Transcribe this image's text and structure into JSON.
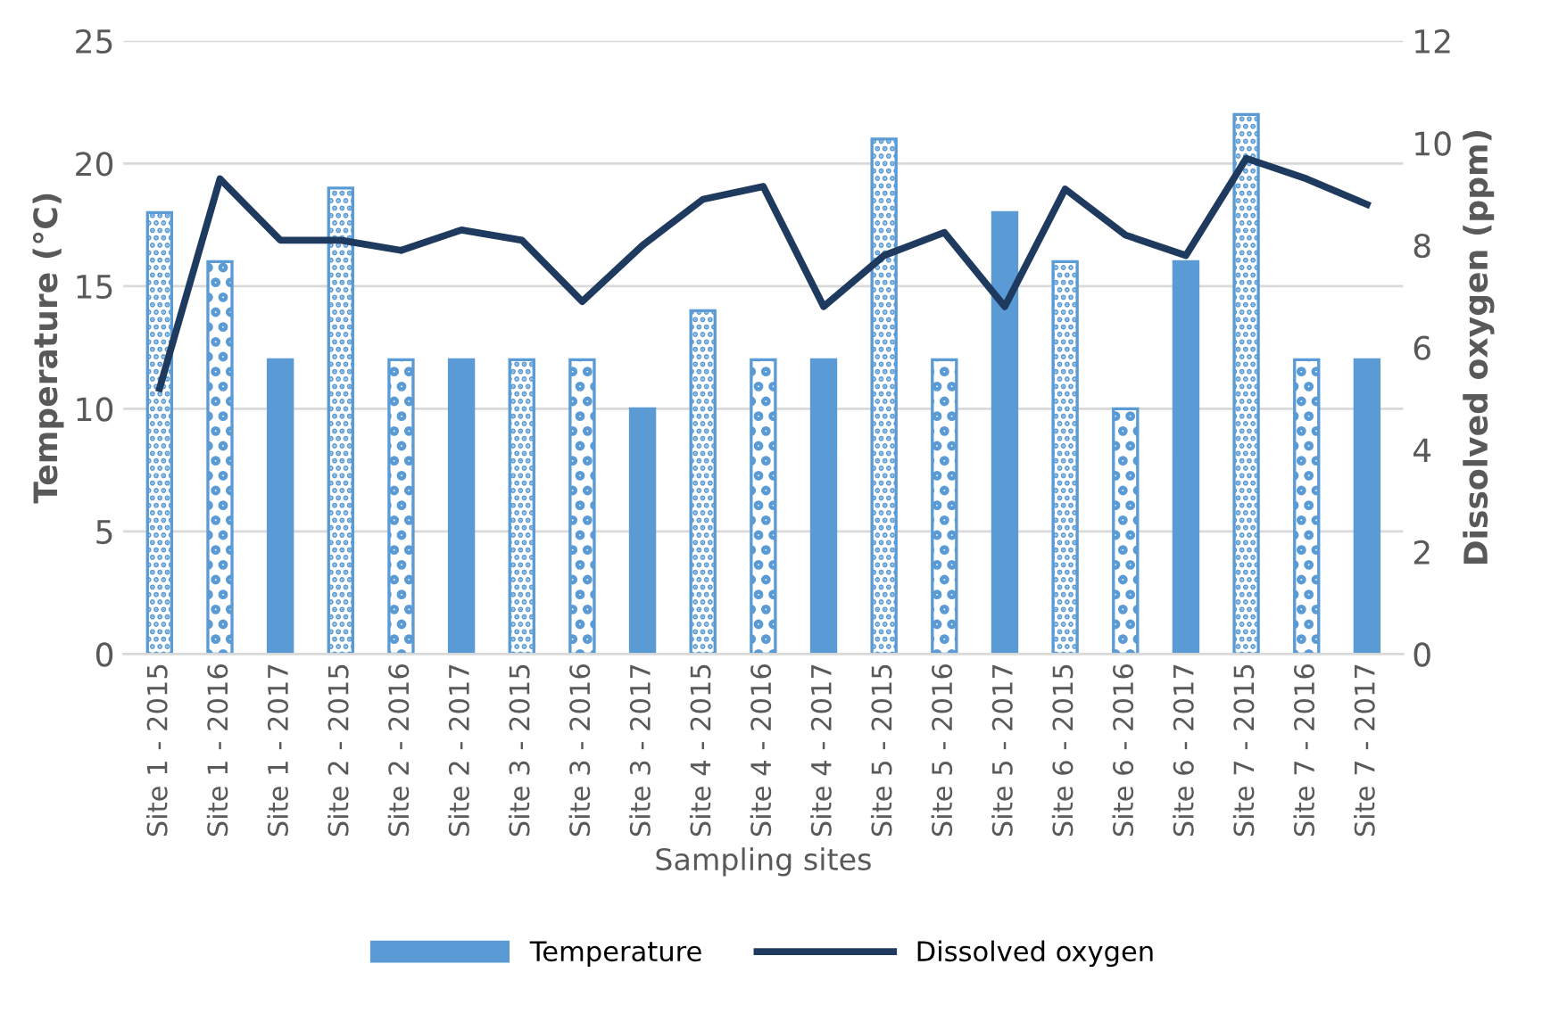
{
  "chart_data": {
    "type": "bar",
    "xlabel": "Sampling sites",
    "ylabel": "Temperature (°C)",
    "y2label": "Dissolved oxygen (ppm)",
    "categories": [
      "Site 1 - 2015",
      "Site 1 - 2016",
      "Site 1 - 2017",
      "Site 2 - 2015",
      "Site 2 - 2016",
      "Site 2 - 2017",
      "Site 3 - 2015",
      "Site 3 - 2016",
      "Site 3 - 2017",
      "Site 4 - 2015",
      "Site 4 - 2016",
      "Site 4 - 2017",
      "Site 5 - 2015",
      "Site 5 - 2016",
      "Site 5 - 2017",
      "Site 6 - 2015",
      "Site 6 - 2016",
      "Site 6 - 2017",
      "Site 7 - 2015",
      "Site 7 - 2016",
      "Site 7 - 2017"
    ],
    "series": [
      {
        "name": "Temperature",
        "color": "#5b9bd5",
        "values": [
          18,
          16,
          12,
          19,
          12,
          12,
          12,
          12,
          10,
          14,
          12,
          12,
          21,
          12,
          18,
          16,
          10,
          16,
          22,
          12,
          12
        ]
      },
      {
        "name": "Dissolved oxygen",
        "type": "line",
        "axis": "y2",
        "color": "#1f3a5f",
        "values": [
          5.2,
          9.3,
          8.1,
          8.1,
          7.9,
          8.3,
          8.1,
          6.9,
          8.0,
          8.9,
          9.15,
          6.8,
          7.8,
          8.25,
          6.8,
          9.1,
          8.2,
          7.8,
          9.7,
          9.3,
          8.8
        ]
      }
    ],
    "ylim": [
      0,
      25
    ],
    "yticks": [
      0,
      5,
      10,
      15,
      20,
      25
    ],
    "y2lim": [
      0,
      12
    ],
    "y2ticks": [
      0,
      2,
      4,
      6,
      8,
      10,
      12
    ],
    "grid": "y",
    "legend": "bottom",
    "marker": "none",
    "line_style": "solid"
  }
}
